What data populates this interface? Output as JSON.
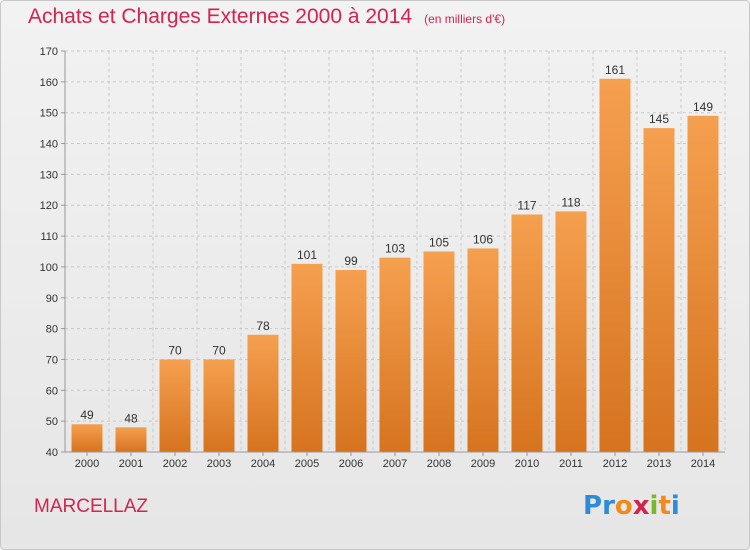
{
  "title": "Achats et Charges Externes 2000 à 2014",
  "unit": "(en milliers d'€)",
  "place": "MARCELLAZ",
  "logo": {
    "letters": [
      "P",
      "r",
      "o",
      "x",
      "i",
      "t",
      "i"
    ],
    "colors": [
      "#2e8bd6",
      "#2e8bd6",
      "#f08a1c",
      "#d3244f",
      "#79b827",
      "#f08a1c",
      "#2e8bd6"
    ]
  },
  "colors": {
    "title": "#d3244f",
    "bar_top": "#f5a04f",
    "bar_bottom": "#d6731f",
    "grid": "#c9c9c9",
    "axis_text": "#333333"
  },
  "chart_data": {
    "type": "bar",
    "categories": [
      "2000",
      "2001",
      "2002",
      "2003",
      "2004",
      "2005",
      "2006",
      "2007",
      "2008",
      "2009",
      "2010",
      "2011",
      "2012",
      "2013",
      "2014"
    ],
    "values": [
      49,
      48,
      70,
      70,
      78,
      101,
      99,
      103,
      105,
      106,
      117,
      118,
      161,
      145,
      149
    ],
    "title": "Achats et Charges Externes 2000 à 2014",
    "ylim": [
      40,
      170
    ],
    "yticks": [
      40,
      50,
      60,
      70,
      80,
      90,
      100,
      110,
      120,
      130,
      140,
      150,
      160,
      170
    ],
    "grid": true,
    "data_labels": true
  }
}
